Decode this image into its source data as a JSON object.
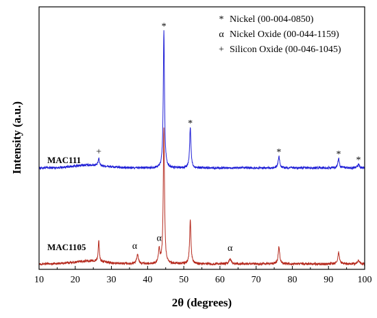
{
  "chart_data": {
    "type": "line",
    "title": "",
    "xlabel": "2θ (degrees)",
    "ylabel": "Intensity (a.u.)",
    "xlim": [
      10,
      100
    ],
    "xticks": [
      "10",
      "20",
      "30",
      "40",
      "50",
      "60",
      "70",
      "80",
      "90",
      "100"
    ],
    "yticks_shown": false,
    "legend": {
      "placement": "top-right",
      "entries": [
        {
          "symbol": "*",
          "label": "Nickel (00-004-0850)"
        },
        {
          "symbol": "α",
          "label": "Nickel Oxide (00-044-1159)"
        },
        {
          "symbol": "+",
          "label": "Silicon Oxide (00-046-1045)"
        }
      ]
    },
    "series": [
      {
        "name": "MAC111",
        "color": "#1f1fd6",
        "baseline": 1.0,
        "noise": 0.012,
        "peaks": [
          {
            "x": 26.5,
            "height": 0.07,
            "width": 0.22
          },
          {
            "x": 44.5,
            "height": 1.43,
            "width": 0.2
          },
          {
            "x": 51.8,
            "height": 0.42,
            "width": 0.22
          },
          {
            "x": 76.3,
            "height": 0.12,
            "width": 0.25
          },
          {
            "x": 92.8,
            "height": 0.1,
            "width": 0.25
          },
          {
            "x": 98.3,
            "height": 0.04,
            "width": 0.25
          }
        ],
        "markers": [
          {
            "x": 26.5,
            "symbol": "+"
          },
          {
            "x": 44.5,
            "symbol": "*"
          },
          {
            "x": 51.8,
            "symbol": "*"
          },
          {
            "x": 76.3,
            "symbol": "*"
          },
          {
            "x": 92.8,
            "symbol": "*"
          },
          {
            "x": 98.3,
            "symbol": "*"
          }
        ]
      },
      {
        "name": "MAC1105",
        "color": "#b52a1e",
        "baseline": 0.0,
        "noise": 0.012,
        "peaks": [
          {
            "x": 26.5,
            "height": 0.22,
            "width": 0.18
          },
          {
            "x": 37.2,
            "height": 0.1,
            "width": 0.3
          },
          {
            "x": 43.2,
            "height": 0.15,
            "width": 0.25
          },
          {
            "x": 44.5,
            "height": 1.42,
            "width": 0.2
          },
          {
            "x": 51.8,
            "height": 0.46,
            "width": 0.22
          },
          {
            "x": 62.8,
            "height": 0.05,
            "width": 0.35
          },
          {
            "x": 76.3,
            "height": 0.18,
            "width": 0.25
          },
          {
            "x": 92.8,
            "height": 0.12,
            "width": 0.25
          },
          {
            "x": 98.3,
            "height": 0.04,
            "width": 0.25
          }
        ],
        "markers": [
          {
            "x": 37.2,
            "symbol": "α"
          },
          {
            "x": 43.2,
            "symbol": "α"
          },
          {
            "x": 62.8,
            "symbol": "α"
          }
        ]
      }
    ]
  }
}
